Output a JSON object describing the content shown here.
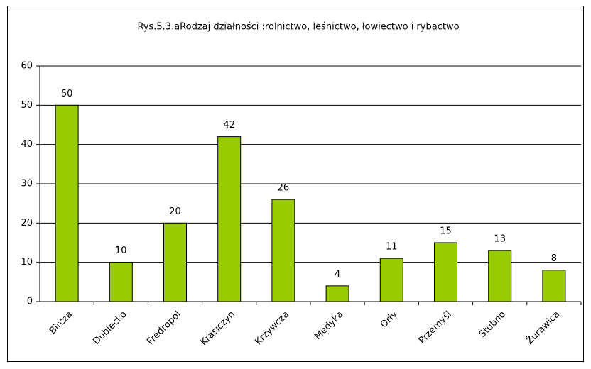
{
  "chart_data": {
    "type": "bar",
    "title": "Rys.5.3.aRodzaj działności :rolnictwo, leśnictwo, łowiectwo i rybactwo",
    "categories": [
      "Bircza",
      "Dubiecko",
      "Fredropol",
      "Krasiczyn",
      "Krzywcza",
      "Medyka",
      "Orły",
      "Przemyśl",
      "Stubno",
      "Żurawica"
    ],
    "values": [
      50,
      10,
      20,
      42,
      26,
      4,
      11,
      15,
      13,
      8
    ],
    "color": "#99cc00",
    "ylim": [
      0,
      60
    ],
    "yticks": [
      0,
      10,
      20,
      30,
      40,
      50,
      60
    ],
    "grid": true
  }
}
